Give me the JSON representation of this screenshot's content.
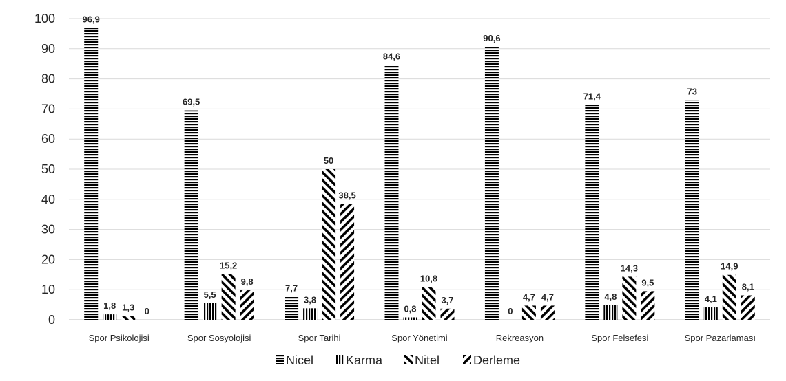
{
  "chart_data": {
    "type": "bar",
    "categories": [
      "Spor Psikolojisi",
      "Spor Sosyolojisi",
      "Spor Tarihi",
      "Spor Yönetimi",
      "Rekreasyon",
      "Spor Felsefesi",
      "Spor Pazarlaması"
    ],
    "series": [
      {
        "name": "Nicel",
        "values": [
          96.9,
          69.5,
          7.7,
          84.6,
          90.6,
          71.4,
          73
        ],
        "labels": [
          "96,9",
          "69,5",
          "7,7",
          "84,6",
          "90,6",
          "71,4",
          "73"
        ],
        "pattern": "horizontal"
      },
      {
        "name": "Karma",
        "values": [
          1.8,
          5.5,
          3.8,
          0.8,
          0,
          4.8,
          4.1
        ],
        "labels": [
          "1,8",
          "5,5",
          "3,8",
          "0,8",
          "0",
          "4,8",
          "4,1"
        ],
        "pattern": "vertical"
      },
      {
        "name": "Nitel",
        "values": [
          1.3,
          15.2,
          50,
          10.8,
          4.7,
          14.3,
          14.9
        ],
        "labels": [
          "1,3",
          "15,2",
          "50",
          "10,8",
          "4,7",
          "14,3",
          "14,9"
        ],
        "pattern": "diag-down"
      },
      {
        "name": "Derleme",
        "values": [
          0,
          9.8,
          38.5,
          3.7,
          4.7,
          9.5,
          8.1
        ],
        "labels": [
          "0",
          "9,8",
          "38,5",
          "3,7",
          "4,7",
          "9,5",
          "8,1"
        ],
        "pattern": "diag-up"
      }
    ],
    "yticks": [
      "0",
      "10",
      "20",
      "30",
      "40",
      "50",
      "60",
      "70",
      "80",
      "90",
      "100"
    ],
    "ylim": [
      0,
      100
    ],
    "grid": true,
    "legend": "bottom",
    "colors": {
      "bar": "#000000",
      "grid": "#d9d9d9",
      "text": "#262626",
      "border": "#bfbfbf"
    }
  }
}
